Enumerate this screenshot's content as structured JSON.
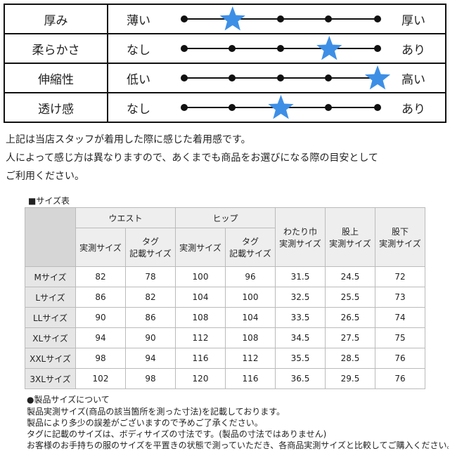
{
  "feel": [
    {
      "label": "厚み",
      "left": "薄い",
      "right": "厚い",
      "level": 2
    },
    {
      "label": "柔らかさ",
      "left": "なし",
      "right": "あり",
      "level": 4
    },
    {
      "label": "伸縮性",
      "left": "低い",
      "right": "高い",
      "level": 5
    },
    {
      "label": "透け感",
      "left": "なし",
      "right": "あり",
      "level": 3
    }
  ],
  "notice": [
    "上記は当店スタッフが着用した際に感じた着用感です。",
    "人によって感じ方は異なりますので、あくまでも商品をお選びになる際の目安として",
    "ご利用ください。"
  ],
  "size_table": {
    "title": "■サイズ表",
    "groups": [
      "ウエスト",
      "ヒップ"
    ],
    "sub_headers": [
      [
        "実測サイズ"
      ],
      [
        "タグ",
        "記載サイズ"
      ],
      [
        "実測サイズ"
      ],
      [
        "タグ",
        "記載サイズ"
      ]
    ],
    "single_headers": [
      [
        "わたり巾",
        "実測サイズ"
      ],
      [
        "股上",
        "実測サイズ"
      ],
      [
        "股下",
        "実測サイズ"
      ]
    ],
    "rows": [
      [
        "Mサイズ",
        82,
        78,
        100,
        96,
        31.5,
        24.5,
        72
      ],
      [
        "Lサイズ",
        86,
        82,
        104,
        100,
        32.5,
        25.5,
        73
      ],
      [
        "LLサイズ",
        90,
        86,
        108,
        104,
        33.5,
        26.5,
        74
      ],
      [
        "XLサイズ",
        94,
        90,
        112,
        108,
        34.5,
        27.5,
        75
      ],
      [
        "XXLサイズ",
        98,
        94,
        116,
        112,
        35.5,
        28.5,
        76
      ],
      [
        "3XLサイズ",
        102,
        98,
        120,
        116,
        36.5,
        29.5,
        76
      ]
    ]
  },
  "notes": {
    "title": "●製品サイズについて",
    "lines": [
      "製品実測サイズ(商品の該当箇所を測った寸法)を記載しております。",
      "製品により多少の誤差がございますので予めご了承ください。",
      "タグに記載のサイズは、ボディサイズの寸法です。(製品の寸法ではありません)",
      "お客様のお手持ちの服のサイズを平置きの状態で測っていただき、各商品実測サイズと比較してご購入ください。"
    ]
  }
}
